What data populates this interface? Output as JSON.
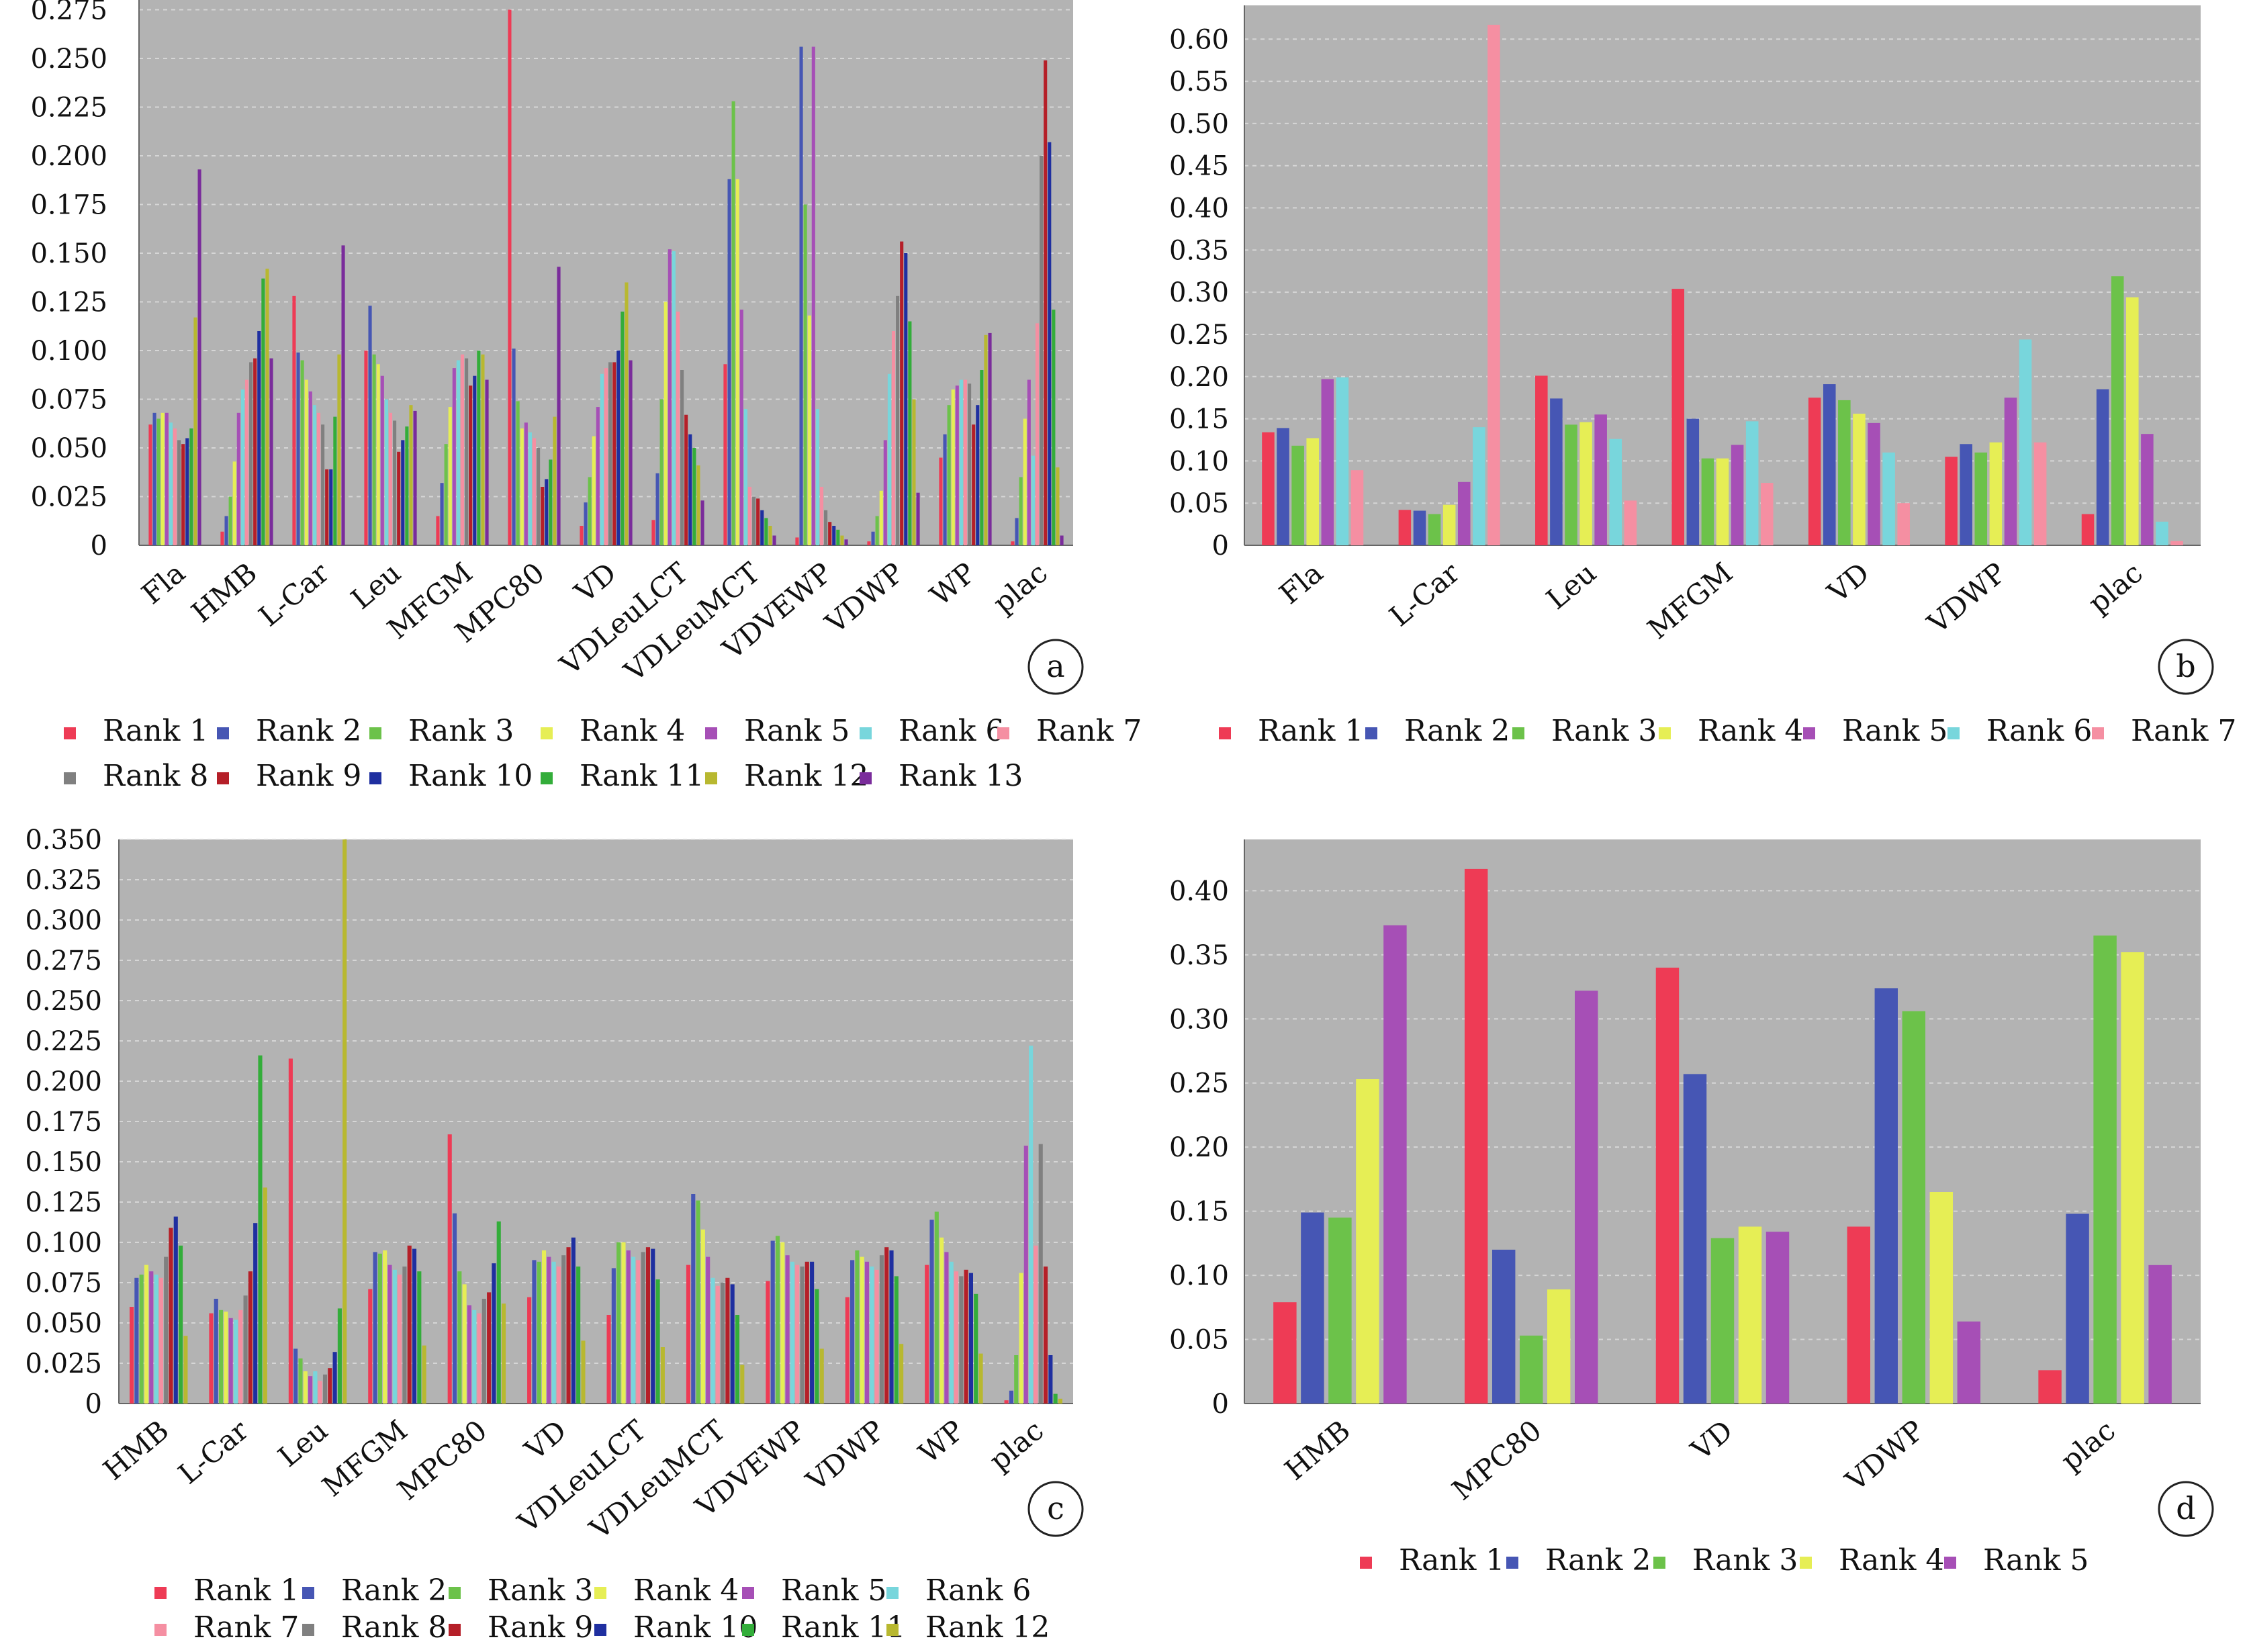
{
  "colors": {
    "plot_bg": "#b3b3b3",
    "grid": "#d6d6d6",
    "Rank 1": "#ee3b55",
    "Rank 2": "#4656b4",
    "Rank 3": "#6cc24a",
    "Rank 4": "#e6ee55",
    "Rank 5": "#a64fb6",
    "Rank 6": "#78d6dc",
    "Rank 7": "#f58fa2",
    "Rank 8": "#808080",
    "Rank 9": "#b51f28",
    "Rank 10": "#1f2fa0",
    "Rank 11": "#33ad3a",
    "Rank 12": "#b8b830",
    "Rank 13": "#7a2c9b"
  },
  "chart_data": [
    {
      "type": "bar",
      "panel_label": "a",
      "categories": [
        "Fla",
        "HMB",
        "L-Car",
        "Leu",
        "MFGM",
        "MPC80",
        "VD",
        "VDLeuLCT",
        "VDLeuMCT",
        "VDVEWP",
        "VDWP",
        "WP",
        "plac"
      ],
      "ylim": [
        0,
        0.28
      ],
      "yticks": [
        "0",
        "0.025",
        "0.050",
        "0.075",
        "0.100",
        "0.125",
        "0.150",
        "0.175",
        "0.200",
        "0.225",
        "0.250",
        "0.275"
      ],
      "grid": true,
      "legend_position": "bottom",
      "series": [
        {
          "name": "Rank 1",
          "values": [
            0.062,
            0.007,
            0.128,
            0.1,
            0.015,
            0.275,
            0.01,
            0.013,
            0.093,
            0.004,
            0.002,
            0.045,
            0.002
          ]
        },
        {
          "name": "Rank 2",
          "values": [
            0.068,
            0.015,
            0.099,
            0.123,
            0.032,
            0.101,
            0.022,
            0.037,
            0.188,
            0.256,
            0.007,
            0.057,
            0.014
          ]
        },
        {
          "name": "Rank 3",
          "values": [
            0.065,
            0.025,
            0.095,
            0.098,
            0.052,
            0.074,
            0.035,
            0.075,
            0.228,
            0.175,
            0.015,
            0.072,
            0.035
          ]
        },
        {
          "name": "Rank 4",
          "values": [
            0.068,
            0.043,
            0.085,
            0.093,
            0.071,
            0.06,
            0.056,
            0.125,
            0.188,
            0.118,
            0.028,
            0.08,
            0.065
          ]
        },
        {
          "name": "Rank 5",
          "values": [
            0.068,
            0.068,
            0.079,
            0.087,
            0.091,
            0.063,
            0.071,
            0.152,
            0.121,
            0.256,
            0.054,
            0.082,
            0.085
          ]
        },
        {
          "name": "Rank 6",
          "values": [
            0.063,
            0.08,
            0.072,
            0.075,
            0.095,
            0.058,
            0.088,
            0.151,
            0.07,
            0.07,
            0.088,
            0.085,
            0.046
          ]
        },
        {
          "name": "Rank 7",
          "values": [
            0.06,
            0.085,
            0.068,
            0.068,
            0.098,
            0.055,
            0.091,
            0.12,
            0.03,
            0.03,
            0.11,
            0.085,
            0.114
          ]
        },
        {
          "name": "Rank 8",
          "values": [
            0.054,
            0.094,
            0.062,
            0.064,
            0.096,
            0.05,
            0.094,
            0.09,
            0.025,
            0.018,
            0.128,
            0.083,
            0.2
          ]
        },
        {
          "name": "Rank 9",
          "values": [
            0.052,
            0.096,
            0.039,
            0.048,
            0.082,
            0.03,
            0.094,
            0.067,
            0.024,
            0.012,
            0.156,
            0.062,
            0.249
          ]
        },
        {
          "name": "Rank 10",
          "values": [
            0.055,
            0.11,
            0.039,
            0.054,
            0.087,
            0.034,
            0.1,
            0.057,
            0.018,
            0.01,
            0.15,
            0.072,
            0.207
          ]
        },
        {
          "name": "Rank 11",
          "values": [
            0.06,
            0.137,
            0.066,
            0.061,
            0.1,
            0.044,
            0.12,
            0.05,
            0.014,
            0.008,
            0.115,
            0.09,
            0.121
          ]
        },
        {
          "name": "Rank 12",
          "values": [
            0.117,
            0.142,
            0.098,
            0.072,
            0.098,
            0.066,
            0.135,
            0.041,
            0.01,
            0.005,
            0.075,
            0.108,
            0.04
          ]
        },
        {
          "name": "Rank 13",
          "values": [
            0.193,
            0.096,
            0.154,
            0.069,
            0.085,
            0.143,
            0.095,
            0.023,
            0.005,
            0.003,
            0.027,
            0.109,
            0.005
          ]
        }
      ]
    },
    {
      "type": "bar",
      "panel_label": "b",
      "categories": [
        "Fla",
        "L-Car",
        "Leu",
        "MFGM",
        "VD",
        "VDWP",
        "plac"
      ],
      "ylim": [
        0,
        0.64
      ],
      "yticks": [
        "0",
        "0.05",
        "0.10",
        "0.15",
        "0.20",
        "0.25",
        "0.30",
        "0.35",
        "0.40",
        "0.45",
        "0.50",
        "0.55",
        "0.60"
      ],
      "grid": true,
      "legend_position": "bottom",
      "series": [
        {
          "name": "Rank 1",
          "values": [
            0.134,
            0.042,
            0.201,
            0.304,
            0.175,
            0.105,
            0.037
          ]
        },
        {
          "name": "Rank 2",
          "values": [
            0.139,
            0.041,
            0.174,
            0.15,
            0.191,
            0.12,
            0.185
          ]
        },
        {
          "name": "Rank 3",
          "values": [
            0.118,
            0.037,
            0.143,
            0.103,
            0.172,
            0.11,
            0.319
          ]
        },
        {
          "name": "Rank 4",
          "values": [
            0.127,
            0.048,
            0.146,
            0.103,
            0.156,
            0.122,
            0.294
          ]
        },
        {
          "name": "Rank 5",
          "values": [
            0.197,
            0.075,
            0.155,
            0.119,
            0.145,
            0.175,
            0.132
          ]
        },
        {
          "name": "Rank 6",
          "values": [
            0.199,
            0.14,
            0.126,
            0.147,
            0.11,
            0.244,
            0.028
          ]
        },
        {
          "name": "Rank 7",
          "values": [
            0.089,
            0.617,
            0.053,
            0.074,
            0.05,
            0.122,
            0.005
          ]
        }
      ]
    },
    {
      "type": "bar",
      "panel_label": "c",
      "categories": [
        "HMB",
        "L-Car",
        "Leu",
        "MFGM",
        "MPC80",
        "VD",
        "VDLeuLCT",
        "VDLeuMCT",
        "VDVEWP",
        "VDWP",
        "WP",
        "plac"
      ],
      "ylim": [
        0,
        0.35
      ],
      "yticks": [
        "0",
        "0.025",
        "0.050",
        "0.075",
        "0.100",
        "0.125",
        "0.150",
        "0.175",
        "0.200",
        "0.225",
        "0.250",
        "0.275",
        "0.300",
        "0.325",
        "0.350"
      ],
      "grid": true,
      "legend_position": "bottom",
      "series": [
        {
          "name": "Rank 1",
          "values": [
            0.06,
            0.056,
            0.214,
            0.071,
            0.167,
            0.066,
            0.055,
            0.086,
            0.076,
            0.066,
            0.086,
            0.002
          ]
        },
        {
          "name": "Rank 2",
          "values": [
            0.078,
            0.065,
            0.034,
            0.094,
            0.118,
            0.089,
            0.084,
            0.13,
            0.101,
            0.089,
            0.114,
            0.008
          ]
        },
        {
          "name": "Rank 3",
          "values": [
            0.08,
            0.058,
            0.028,
            0.093,
            0.082,
            0.088,
            0.1,
            0.126,
            0.104,
            0.095,
            0.119,
            0.03
          ]
        },
        {
          "name": "Rank 4",
          "values": [
            0.086,
            0.057,
            0.02,
            0.095,
            0.074,
            0.095,
            0.1,
            0.108,
            0.1,
            0.091,
            0.103,
            0.081
          ]
        },
        {
          "name": "Rank 5",
          "values": [
            0.082,
            0.053,
            0.017,
            0.086,
            0.061,
            0.091,
            0.095,
            0.091,
            0.092,
            0.088,
            0.094,
            0.16
          ]
        },
        {
          "name": "Rank 6",
          "values": [
            0.08,
            0.052,
            0.02,
            0.083,
            0.058,
            0.088,
            0.091,
            0.078,
            0.088,
            0.085,
            0.088,
            0.222
          ]
        },
        {
          "name": "Rank 7",
          "values": [
            0.078,
            0.058,
            0.014,
            0.08,
            0.056,
            0.085,
            0.089,
            0.073,
            0.086,
            0.083,
            0.082,
            0.098
          ]
        },
        {
          "name": "Rank 8",
          "values": [
            0.091,
            0.067,
            0.018,
            0.085,
            0.065,
            0.092,
            0.094,
            0.075,
            0.085,
            0.092,
            0.079,
            0.161
          ]
        },
        {
          "name": "Rank 9",
          "values": [
            0.109,
            0.082,
            0.022,
            0.098,
            0.069,
            0.097,
            0.097,
            0.078,
            0.088,
            0.097,
            0.083,
            0.085
          ]
        },
        {
          "name": "Rank 10",
          "values": [
            0.116,
            0.112,
            0.032,
            0.096,
            0.087,
            0.103,
            0.096,
            0.074,
            0.088,
            0.095,
            0.081,
            0.03
          ]
        },
        {
          "name": "Rank 11",
          "values": [
            0.098,
            0.216,
            0.059,
            0.082,
            0.113,
            0.085,
            0.077,
            0.055,
            0.071,
            0.079,
            0.068,
            0.006
          ]
        },
        {
          "name": "Rank 12",
          "values": [
            0.042,
            0.134,
            0.35,
            0.036,
            0.062,
            0.039,
            0.035,
            0.024,
            0.034,
            0.037,
            0.031,
            0.003
          ]
        }
      ]
    },
    {
      "type": "bar",
      "panel_label": "d",
      "categories": [
        "HMB",
        "MPC80",
        "VD",
        "VDWP",
        "plac"
      ],
      "ylim": [
        0,
        0.44
      ],
      "yticks": [
        "0",
        "0.05",
        "0.10",
        "0.15",
        "0.20",
        "0.25",
        "0.30",
        "0.35",
        "0.40"
      ],
      "grid": true,
      "legend_position": "bottom",
      "series": [
        {
          "name": "Rank 1",
          "values": [
            0.079,
            0.417,
            0.34,
            0.138,
            0.026
          ]
        },
        {
          "name": "Rank 2",
          "values": [
            0.149,
            0.12,
            0.257,
            0.324,
            0.148
          ]
        },
        {
          "name": "Rank 3",
          "values": [
            0.145,
            0.053,
            0.129,
            0.306,
            0.365
          ]
        },
        {
          "name": "Rank 4",
          "values": [
            0.253,
            0.089,
            0.138,
            0.165,
            0.352
          ]
        },
        {
          "name": "Rank 5",
          "values": [
            0.373,
            0.322,
            0.134,
            0.064,
            0.108
          ]
        }
      ]
    }
  ]
}
